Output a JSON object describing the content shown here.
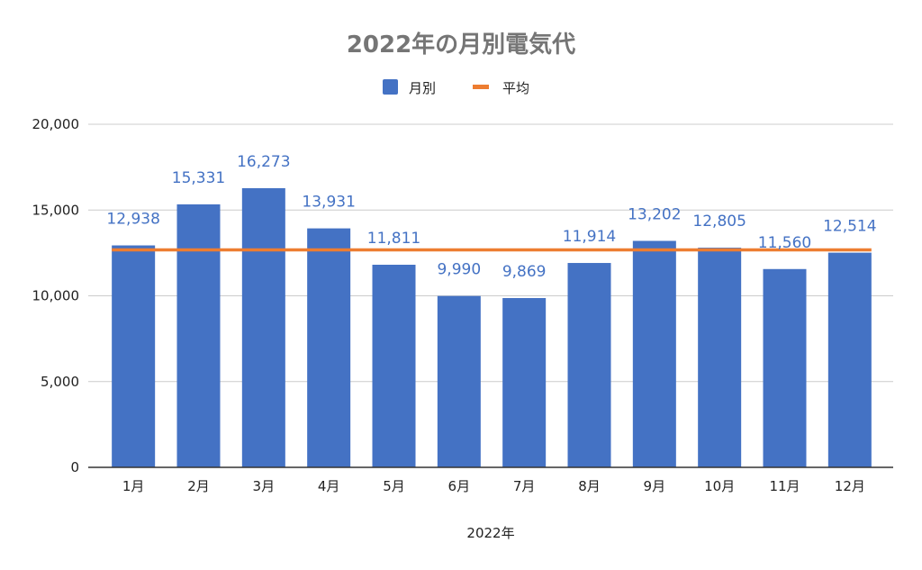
{
  "chart_data": {
    "type": "bar",
    "title": "2022年の月別電気代",
    "xlabel": "2022年",
    "ylabel": "",
    "categories": [
      "1月",
      "2月",
      "3月",
      "4月",
      "5月",
      "6月",
      "7月",
      "8月",
      "9月",
      "10月",
      "11月",
      "12月"
    ],
    "series": [
      {
        "name": "月別",
        "type": "bar",
        "color": "#4472c4",
        "values": [
          12938,
          15331,
          16273,
          13931,
          11811,
          9990,
          9869,
          11914,
          13202,
          12805,
          11560,
          12514
        ],
        "labels": [
          "12,938",
          "15,331",
          "16,273",
          "13,931",
          "11,811",
          "9,990",
          "9,869",
          "11,914",
          "13,202",
          "12,805",
          "11,560",
          "12,514"
        ]
      },
      {
        "name": "平均",
        "type": "line",
        "color": "#ed7d31",
        "values": [
          12678,
          12678,
          12678,
          12678,
          12678,
          12678,
          12678,
          12678,
          12678,
          12678,
          12678,
          12678
        ]
      }
    ],
    "ylim": [
      0,
      20000
    ],
    "yticks": [
      0,
      5000,
      10000,
      15000,
      20000
    ],
    "ytick_labels": [
      "0",
      "5,000",
      "10,000",
      "15,000",
      "20,000"
    ],
    "grid": true,
    "legend_position": "top-center"
  }
}
